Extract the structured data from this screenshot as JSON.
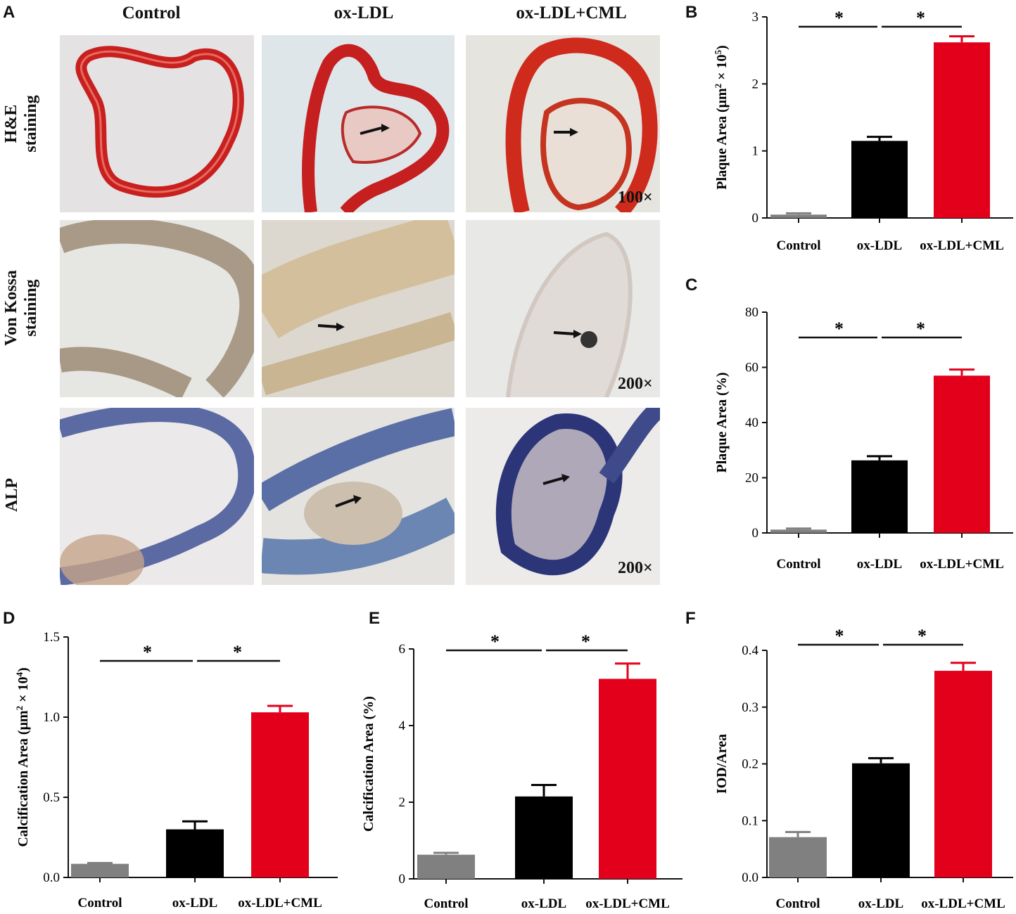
{
  "panel_letters": {
    "a": "A",
    "b": "B",
    "c": "C",
    "d": "D",
    "e": "E",
    "f": "F"
  },
  "micrographs": {
    "columns": [
      "Control",
      "ox-LDL",
      "ox-LDL+CML"
    ],
    "rows": [
      {
        "label_line1": "H&E",
        "label_line2": "staining",
        "magnification": "100×"
      },
      {
        "label_line1": "Von Kossa",
        "label_line2": "staining",
        "magnification": "200×"
      },
      {
        "label_line1": "ALP",
        "label_line2": "",
        "magnification": "200×"
      }
    ]
  },
  "colors": {
    "control": "#808080",
    "oxldl": "#000000",
    "oxldl_cml": "#e3001b"
  },
  "chart_data": [
    {
      "panel": "B",
      "type": "bar",
      "categories": [
        "Control",
        "ox-LDL",
        "ox-LDL+CML"
      ],
      "values": [
        0.05,
        1.15,
        2.62
      ],
      "errors": [
        0.02,
        0.06,
        0.09
      ],
      "ylabel_main": "Plaque  Area (μm",
      "ylabel_sup1": "2",
      "ylabel_mid": " × 10",
      "ylabel_sup2": "5",
      "ylabel_end": ")",
      "ylim": [
        0,
        3
      ],
      "yticks": [
        0,
        1,
        2,
        3
      ],
      "tick_labels": [
        "0",
        "1",
        "2",
        "3"
      ],
      "significance": [
        "*",
        "*"
      ]
    },
    {
      "panel": "C",
      "type": "bar",
      "categories": [
        "Control",
        "ox-LDL",
        "ox-LDL+CML"
      ],
      "values": [
        1.2,
        26.3,
        57.0
      ],
      "errors": [
        0.4,
        1.5,
        2.2
      ],
      "ylabel_main": "Plaque  Area (%)",
      "ylim": [
        0,
        80
      ],
      "yticks": [
        0,
        20,
        40,
        60,
        80
      ],
      "tick_labels": [
        "0",
        "20",
        "40",
        "60",
        "80"
      ],
      "significance": [
        "*",
        "*"
      ]
    },
    {
      "panel": "D",
      "type": "bar",
      "categories": [
        "Control",
        "ox-LDL",
        "ox-LDL+CML"
      ],
      "values": [
        0.085,
        0.3,
        1.03
      ],
      "errors": [
        0.005,
        0.05,
        0.04
      ],
      "ylabel_main": "Calcification  Area (μm",
      "ylabel_sup1": "2",
      "ylabel_mid": " × 10",
      "ylabel_sup2": "4",
      "ylabel_end": ")",
      "ylim": [
        0,
        1.5
      ],
      "yticks": [
        0,
        0.5,
        1.0,
        1.5
      ],
      "tick_labels": [
        "0.0",
        "0.5",
        "1.0",
        "1.5"
      ],
      "significance": [
        "*",
        "*"
      ]
    },
    {
      "panel": "E",
      "type": "bar",
      "categories": [
        "Control",
        "ox-LDL",
        "ox-LDL+CML"
      ],
      "values": [
        0.63,
        2.15,
        5.22
      ],
      "errors": [
        0.05,
        0.3,
        0.4
      ],
      "ylabel_main": "Calcification  Area (%)",
      "ylim": [
        0,
        6
      ],
      "yticks": [
        0,
        2,
        4,
        6
      ],
      "tick_labels": [
        "0",
        "2",
        "4",
        "6"
      ],
      "significance": [
        "*",
        "*"
      ]
    },
    {
      "panel": "F",
      "type": "bar",
      "categories": [
        "Control",
        "ox-LDL",
        "ox-LDL+CML"
      ],
      "values": [
        0.071,
        0.201,
        0.364
      ],
      "errors": [
        0.009,
        0.009,
        0.014
      ],
      "ylabel_main": "IOD/Area",
      "ylim": [
        0,
        0.4
      ],
      "yticks": [
        0,
        0.1,
        0.2,
        0.3,
        0.4
      ],
      "tick_labels": [
        "0.0",
        "0.1",
        "0.2",
        "0.3",
        "0.4"
      ],
      "significance": [
        "*",
        "*"
      ]
    }
  ]
}
